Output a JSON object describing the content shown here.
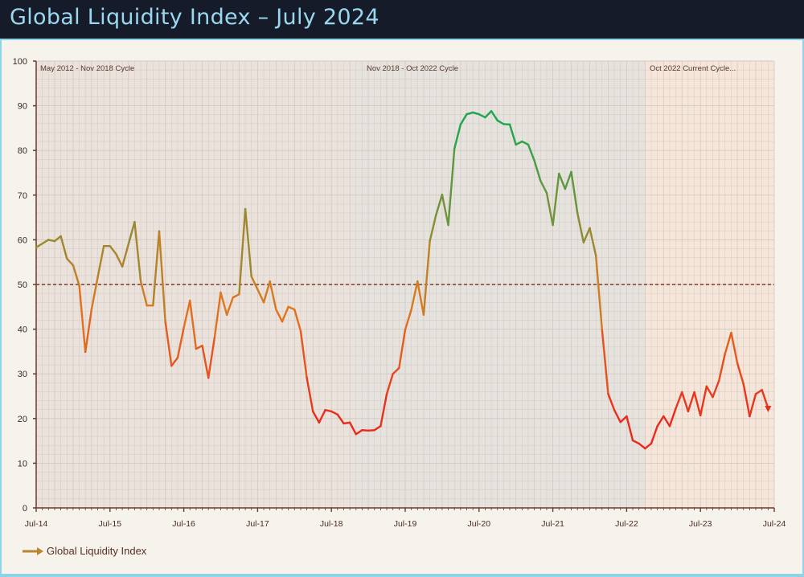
{
  "header": {
    "title": "Global Liquidity Index – July 2024"
  },
  "colors": {
    "header_bg": "#161b29",
    "title": "#9ad8f0",
    "axis": "#6b3a2a",
    "low": "#ea2a1c",
    "mid": "#e0781f",
    "high": "#1ea64e",
    "legend_arrow": "#b8862e"
  },
  "chart_data": {
    "type": "line",
    "title": "",
    "xlabel": "",
    "ylabel": "",
    "ylim": [
      0,
      100
    ],
    "xlim": [
      "2014-07",
      "2024-07"
    ],
    "grid": true,
    "y_ticks": [
      "0",
      "10",
      "20",
      "30",
      "40",
      "50",
      "60",
      "70",
      "80",
      "90",
      "100"
    ],
    "x_ticks": [
      "Jul-14",
      "Jul-15",
      "Jul-16",
      "Jul-17",
      "Jul-18",
      "Jul-19",
      "Jul-20",
      "Jul-21",
      "Jul-22",
      "Jul-23",
      "Jul-24"
    ],
    "reference_line": {
      "y": 50,
      "style": "dashed"
    },
    "cycles": [
      {
        "label": "May 2012 - Nov 2018 Cycle",
        "end": "2018-11"
      },
      {
        "label": "Nov 2018 - Oct 2022 Cycle",
        "start": "2018-11",
        "end": "2022-10"
      },
      {
        "label": "Oct 2022 Current Cycle...",
        "start": "2022-10"
      }
    ],
    "legend": {
      "position": "bottom-left",
      "entries": [
        "Global Liquidity Index"
      ]
    },
    "series": [
      {
        "name": "Global Liquidity Index",
        "points": [
          [
            "2014-07",
            58.3
          ],
          [
            "2014-09",
            60
          ],
          [
            "2014-10",
            59.7
          ],
          [
            "2014-11",
            60.8
          ],
          [
            "2014-12",
            55.8
          ],
          [
            "2015-01",
            54.3
          ],
          [
            "2015-02",
            49.8
          ],
          [
            "2015-03",
            34.9
          ],
          [
            "2015-04",
            44.4
          ],
          [
            "2015-05",
            51.6
          ],
          [
            "2015-06",
            58.6
          ],
          [
            "2015-07",
            58.6
          ],
          [
            "2015-08",
            56.8
          ],
          [
            "2015-09",
            54
          ],
          [
            "2015-10",
            59
          ],
          [
            "2015-11",
            64
          ],
          [
            "2015-12",
            50.7
          ],
          [
            "2016-01",
            45.3
          ],
          [
            "2016-02",
            45.3
          ],
          [
            "2016-03",
            61.9
          ],
          [
            "2016-04",
            41.7
          ],
          [
            "2016-05",
            31.8
          ],
          [
            "2016-06",
            33.6
          ],
          [
            "2016-07",
            40.3
          ],
          [
            "2016-08",
            46.4
          ],
          [
            "2016-09",
            35.6
          ],
          [
            "2016-10",
            36.3
          ],
          [
            "2016-11",
            29.1
          ],
          [
            "2016-12",
            38.1
          ],
          [
            "2017-01",
            48.2
          ],
          [
            "2017-02",
            43.2
          ],
          [
            "2017-03",
            47.1
          ],
          [
            "2017-04",
            47.8
          ],
          [
            "2017-05",
            66.9
          ],
          [
            "2017-06",
            51.8
          ],
          [
            "2017-07",
            48.9
          ],
          [
            "2017-08",
            46
          ],
          [
            "2017-09",
            50.7
          ],
          [
            "2017-10",
            44.4
          ],
          [
            "2017-11",
            41.7
          ],
          [
            "2017-12",
            45
          ],
          [
            "2018-01",
            44.4
          ],
          [
            "2018-02",
            39.6
          ],
          [
            "2018-03",
            29.1
          ],
          [
            "2018-04",
            21.6
          ],
          [
            "2018-05",
            19.1
          ],
          [
            "2018-06",
            21.9
          ],
          [
            "2018-07",
            21.6
          ],
          [
            "2018-08",
            20.9
          ],
          [
            "2018-09",
            18.9
          ],
          [
            "2018-10",
            19.1
          ],
          [
            "2018-11",
            16.5
          ],
          [
            "2018-12",
            17.4
          ],
          [
            "2019-01",
            17.3
          ],
          [
            "2019-02",
            17.4
          ],
          [
            "2019-03",
            18.3
          ],
          [
            "2019-04",
            25.5
          ],
          [
            "2019-05",
            30
          ],
          [
            "2019-06",
            31.3
          ],
          [
            "2019-07",
            39.9
          ],
          [
            "2019-08",
            44.4
          ],
          [
            "2019-09",
            50.7
          ],
          [
            "2019-10",
            43.2
          ],
          [
            "2019-11",
            59.7
          ],
          [
            "2019-12",
            65.5
          ],
          [
            "2020-01",
            70.1
          ],
          [
            "2020-02",
            63.3
          ],
          [
            "2020-03",
            80.4
          ],
          [
            "2020-04",
            85.8
          ],
          [
            "2020-05",
            88.1
          ],
          [
            "2020-06",
            88.5
          ],
          [
            "2020-07",
            88.1
          ],
          [
            "2020-08",
            87.4
          ],
          [
            "2020-09",
            88.8
          ],
          [
            "2020-10",
            86.7
          ],
          [
            "2020-11",
            85.9
          ],
          [
            "2020-12",
            85.8
          ],
          [
            "2021-01",
            81.3
          ],
          [
            "2021-02",
            82
          ],
          [
            "2021-03",
            81.3
          ],
          [
            "2021-04",
            77.7
          ],
          [
            "2021-05",
            73.2
          ],
          [
            "2021-06",
            70.5
          ],
          [
            "2021-07",
            63.3
          ],
          [
            "2021-08",
            74.8
          ],
          [
            "2021-09",
            71.4
          ],
          [
            "2021-10",
            75.2
          ],
          [
            "2021-11",
            66
          ],
          [
            "2021-12",
            59.4
          ],
          [
            "2022-01",
            62.6
          ],
          [
            "2022-02",
            56.5
          ],
          [
            "2022-03",
            39.9
          ],
          [
            "2022-04",
            25.5
          ],
          [
            "2022-05",
            21.9
          ],
          [
            "2022-06",
            19.2
          ],
          [
            "2022-07",
            20.5
          ],
          [
            "2022-08",
            15.1
          ],
          [
            "2022-09",
            14.4
          ],
          [
            "2022-10",
            13.3
          ],
          [
            "2022-11",
            14.4
          ],
          [
            "2022-12",
            18.3
          ],
          [
            "2023-01",
            20.5
          ],
          [
            "2023-02",
            18.3
          ],
          [
            "2023-03",
            22.3
          ],
          [
            "2023-04",
            25.9
          ],
          [
            "2023-05",
            21.6
          ],
          [
            "2023-06",
            25.9
          ],
          [
            "2023-07",
            20.7
          ],
          [
            "2023-08",
            27.2
          ],
          [
            "2023-09",
            24.8
          ],
          [
            "2023-10",
            28.4
          ],
          [
            "2023-11",
            34.5
          ],
          [
            "2023-12",
            39.2
          ],
          [
            "2024-01",
            32.4
          ],
          [
            "2024-02",
            27.7
          ],
          [
            "2024-03",
            20.5
          ],
          [
            "2024-04",
            25.5
          ],
          [
            "2024-05",
            26.4
          ],
          [
            "2024-06",
            22.3
          ]
        ]
      }
    ]
  }
}
